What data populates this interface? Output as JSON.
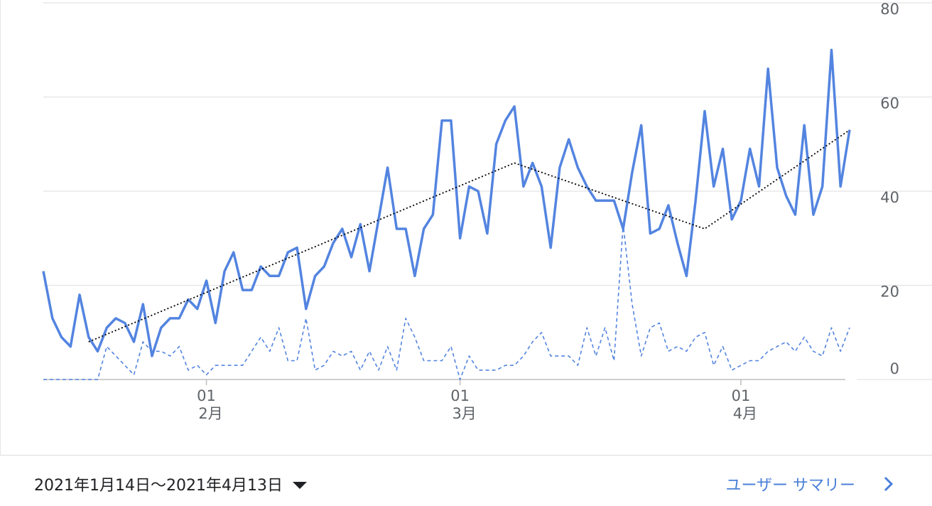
{
  "chart_data": {
    "type": "line",
    "y_ticks": [
      "80",
      "60",
      "40",
      "20",
      "0"
    ],
    "ylim": [
      0,
      80
    ],
    "y_tick_values": [
      80,
      60,
      40,
      20,
      0
    ],
    "x_ticks": [
      {
        "day_label": "01",
        "month_label": "2月",
        "date": "2021-02-01"
      },
      {
        "day_label": "01",
        "month_label": "3月",
        "date": "2021-03-01"
      },
      {
        "day_label": "01",
        "month_label": "4月",
        "date": "2021-04-01"
      }
    ],
    "x_start": "2021-01-14",
    "x_end": "2021-04-13",
    "grid": true,
    "series": [
      {
        "style": "solid",
        "color": "#5384e0",
        "values": [
          23,
          13,
          9,
          7,
          18,
          9,
          6,
          11,
          13,
          12,
          8,
          16,
          5,
          11,
          13,
          13,
          17,
          15,
          21,
          12,
          23,
          27,
          19,
          19,
          24,
          22,
          22,
          27,
          28,
          15,
          22,
          24,
          29,
          32,
          26,
          33,
          23,
          34,
          45,
          32,
          32,
          22,
          32,
          35,
          55,
          55,
          30,
          41,
          40,
          31,
          50,
          55,
          58,
          41,
          46,
          41,
          28,
          45,
          51,
          45,
          41,
          38,
          38,
          38,
          32,
          44,
          54,
          31,
          32,
          37,
          29,
          22,
          38,
          57,
          41,
          49,
          34,
          38,
          49,
          41,
          66,
          45,
          39,
          35,
          54,
          35,
          41,
          70,
          41,
          53
        ]
      },
      {
        "style": "dashed",
        "color": "#5384e0",
        "values": [
          0,
          0,
          0,
          0,
          0,
          0,
          0,
          7,
          5,
          3,
          1,
          8,
          6,
          6,
          5,
          7,
          2,
          3,
          1,
          3,
          3,
          3,
          3,
          6,
          9,
          6,
          11,
          4,
          4,
          13,
          2,
          3,
          6,
          5,
          6,
          2,
          6,
          2,
          7,
          2,
          13,
          9,
          4,
          4,
          4,
          7,
          0,
          5,
          2,
          2,
          2,
          3,
          3,
          5,
          8,
          10,
          5,
          5,
          5,
          3,
          11,
          5,
          11,
          4,
          33,
          16,
          5,
          11,
          12,
          6,
          7,
          6,
          9,
          10,
          3,
          7,
          2,
          3,
          4,
          4,
          6,
          7,
          8,
          6,
          9,
          6,
          5,
          11,
          6,
          11
        ]
      },
      {
        "style": "dotted",
        "color": "#000000",
        "points": [
          {
            "date": "2021-01-19",
            "value": 8
          },
          {
            "date": "2021-03-07",
            "value": 46
          },
          {
            "date": "2021-03-28",
            "value": 32
          },
          {
            "date": "2021-04-13",
            "value": 53
          }
        ]
      }
    ]
  },
  "footer": {
    "date_range": "2021年1月14日〜2021年4月13日",
    "summary_link": "ユーザー サマリー"
  }
}
